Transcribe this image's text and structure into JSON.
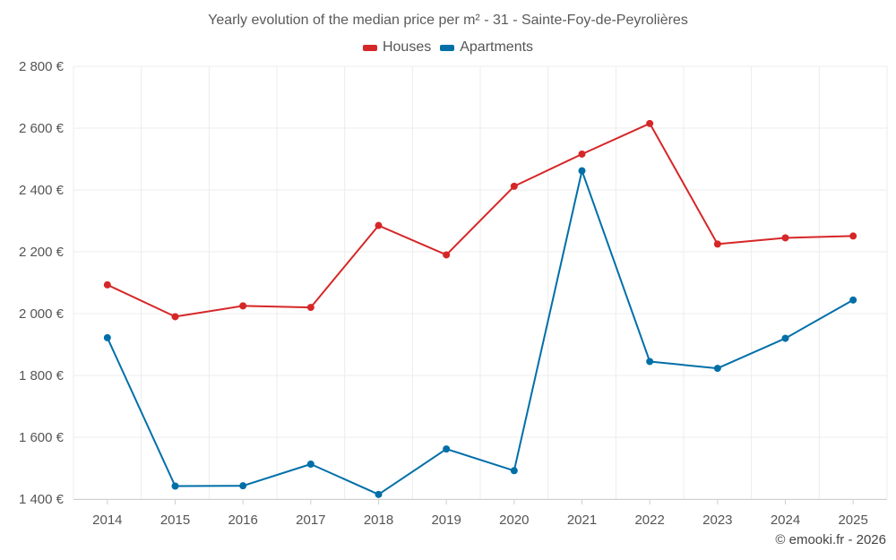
{
  "chart_data": {
    "type": "line",
    "title": "Yearly evolution of the median price per m² - 31 - Sainte-Foy-de-Peyrolières",
    "xlabel": "",
    "ylabel": "",
    "categories": [
      "2014",
      "2015",
      "2016",
      "2017",
      "2018",
      "2019",
      "2020",
      "2021",
      "2022",
      "2023",
      "2024",
      "2025"
    ],
    "y_tick_labels": [
      "1 400 €",
      "1 600 €",
      "1 800 €",
      "2 000 €",
      "2 200 €",
      "2 400 €",
      "2 600 €",
      "2 800 €"
    ],
    "y_ticks": [
      1400,
      1600,
      1800,
      2000,
      2200,
      2400,
      2600,
      2800
    ],
    "ylim": [
      1400,
      2800
    ],
    "grid": true,
    "legend_position": "top-center",
    "series": [
      {
        "name": "Houses",
        "color": "#d62728",
        "values": [
          2093,
          1990,
          2025,
          2020,
          2285,
          2190,
          2412,
          2516,
          2615,
          2225,
          2245,
          2251
        ]
      },
      {
        "name": "Apartments",
        "color": "#006fa8",
        "values": [
          1922,
          1442,
          1443,
          1513,
          1415,
          1562,
          1492,
          2462,
          1845,
          1823,
          1920,
          2044
        ]
      }
    ]
  },
  "footer": {
    "credit": "© emooki.fr - 2026"
  }
}
